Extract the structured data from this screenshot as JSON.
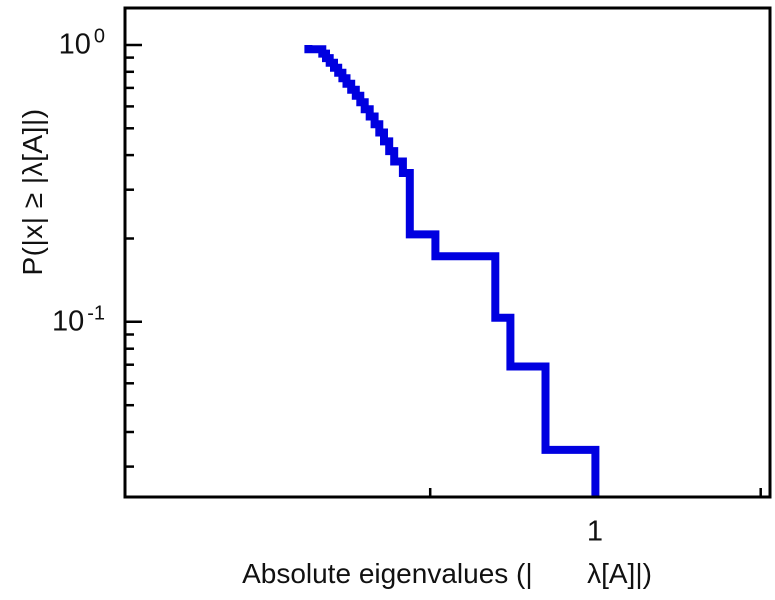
{
  "figure": {
    "background": "#ffffff",
    "xlabel": "Absolute eigenvalues (|       λ[A]|)",
    "ylabel": "P(|x| ≥ |λ[A]|)",
    "x_tick_label": "1",
    "y_tick_labels": [
      {
        "base": "10",
        "exp": "0"
      },
      {
        "base": "10",
        "exp": "-1"
      }
    ]
  },
  "chart_data": {
    "type": "line",
    "subtype": "empirical-ccdf-step",
    "title": "",
    "xlabel": "Absolute eigenvalues (|λ[A]|)",
    "ylabel": "P(|x| ≥ |λ[A]|)",
    "xscale": "log",
    "yscale": "log",
    "xlim": [
      0.139,
      2.08
    ],
    "ylim": [
      0.0233,
      1.36
    ],
    "x_major_ticks": [
      1
    ],
    "x_minor_ticks": [
      0.5,
      2
    ],
    "y_major_ticks": [
      1,
      0.1
    ],
    "y_minor_ticks": [
      0.9,
      0.8,
      0.7,
      0.6,
      0.5,
      0.4,
      0.3,
      0.2,
      0.09,
      0.08,
      0.07,
      0.06,
      0.05,
      0.04,
      0.03
    ],
    "grid": false,
    "legend": false,
    "n_samples": 29,
    "eigenvalues": [
      0.3,
      0.318,
      0.323,
      0.328,
      0.334,
      0.34,
      0.346,
      0.352,
      0.359,
      0.366,
      0.373,
      0.38,
      0.388,
      0.396,
      0.404,
      0.412,
      0.421,
      0.43,
      0.446,
      0.459,
      0.459,
      0.459,
      0.459,
      0.511,
      0.657,
      0.657,
      0.7,
      0.811,
      1.0
    ],
    "ccdf_start_p": 1.0,
    "line_color": "#0000e0",
    "line_width": 8,
    "axis_color": "#000000"
  }
}
